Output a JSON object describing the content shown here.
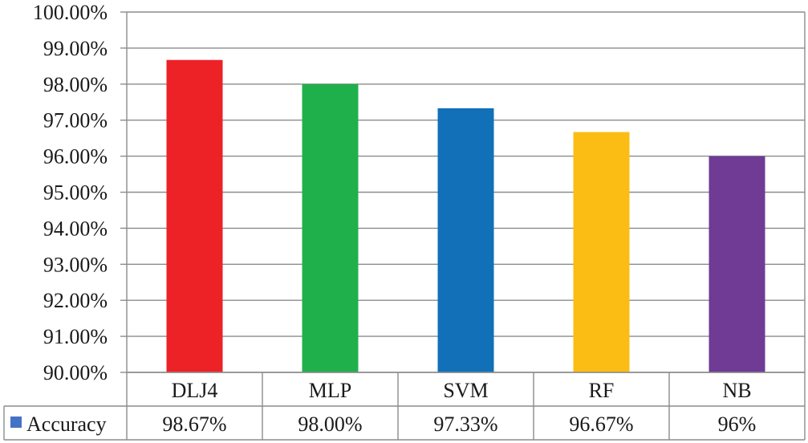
{
  "chart_data": {
    "type": "bar",
    "categories": [
      "DLJ4",
      "MLP",
      "SVM",
      "RF",
      "NB"
    ],
    "series": [
      {
        "name": "Accuracy",
        "values": [
          98.67,
          98.0,
          97.33,
          96.67,
          96.0
        ],
        "value_labels": [
          "98.67%",
          "98.00%",
          "97.33%",
          "96.67%",
          "96%"
        ],
        "legend_color": "#4472c4"
      }
    ],
    "bar_colors": [
      "#ec2227",
      "#20b04b",
      "#1170b8",
      "#fbbd14",
      "#6f3b94"
    ],
    "ylim": [
      90,
      100
    ],
    "yticks": [
      90,
      91,
      92,
      93,
      94,
      95,
      96,
      97,
      98,
      99,
      100
    ],
    "ytick_labels": [
      "90.00%",
      "91.00%",
      "92.00%",
      "93.00%",
      "94.00%",
      "95.00%",
      "96.00%",
      "97.00%",
      "98.00%",
      "99.00%",
      "100.00%"
    ],
    "grid": true,
    "legend": "data-table-row",
    "title": "",
    "xlabel": "",
    "ylabel": ""
  }
}
